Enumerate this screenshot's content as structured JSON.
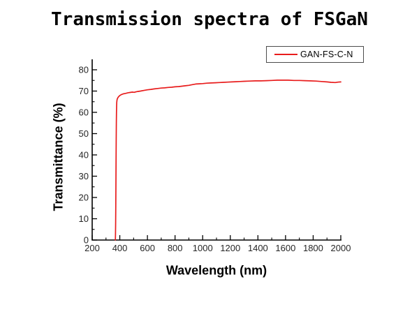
{
  "page": {
    "background": "#ffffff"
  },
  "chart": {
    "title": "Transmission spectra of FSGaN",
    "xlabel": "Wavelength (nm)",
    "ylabel": "Transmittance (%)",
    "legend": {
      "label": "GAN-FS-C-N"
    },
    "colors": {
      "series": "#e81c1c",
      "axis": "#000000",
      "tick_label": "#262626",
      "legend_border": "#4c4c4c",
      "title": "#000000"
    }
  },
  "chart_data": {
    "type": "line",
    "title": "Transmission spectra of FSGaN",
    "xlabel": "Wavelength (nm)",
    "ylabel": "Transmittance (%)",
    "xlim": [
      200,
      2000
    ],
    "ylim": [
      0,
      85
    ],
    "x_ticks": [
      200,
      400,
      600,
      800,
      1000,
      1200,
      1400,
      1600,
      1800,
      2000
    ],
    "y_ticks": [
      0,
      10,
      20,
      30,
      40,
      50,
      60,
      70,
      80
    ],
    "x_minor_step": 100,
    "y_minor_step": 5,
    "grid": false,
    "legend_position": "top-right",
    "series": [
      {
        "name": "GAN-FS-C-N",
        "color": "#e81c1c",
        "points": [
          [
            368,
            0
          ],
          [
            369,
            3
          ],
          [
            370,
            8
          ],
          [
            371,
            16
          ],
          [
            372,
            26
          ],
          [
            373,
            37
          ],
          [
            374,
            47
          ],
          [
            375,
            55
          ],
          [
            376,
            60
          ],
          [
            377,
            63
          ],
          [
            378,
            64.8
          ],
          [
            380,
            65.9
          ],
          [
            383,
            66.5
          ],
          [
            387,
            67.0
          ],
          [
            392,
            67.4
          ],
          [
            400,
            67.9
          ],
          [
            410,
            68.3
          ],
          [
            425,
            68.7
          ],
          [
            440,
            68.9
          ],
          [
            455,
            69.1
          ],
          [
            470,
            69.3
          ],
          [
            490,
            69.5
          ],
          [
            505,
            69.4
          ],
          [
            515,
            69.6
          ],
          [
            530,
            69.8
          ],
          [
            550,
            70.0
          ],
          [
            575,
            70.3
          ],
          [
            600,
            70.6
          ],
          [
            625,
            70.8
          ],
          [
            650,
            71.0
          ],
          [
            675,
            71.2
          ],
          [
            700,
            71.4
          ],
          [
            725,
            71.5
          ],
          [
            750,
            71.7
          ],
          [
            775,
            71.8
          ],
          [
            800,
            72.0
          ],
          [
            825,
            72.1
          ],
          [
            850,
            72.3
          ],
          [
            875,
            72.5
          ],
          [
            900,
            72.7
          ],
          [
            925,
            73.0
          ],
          [
            950,
            73.3
          ],
          [
            975,
            73.4
          ],
          [
            1000,
            73.5
          ],
          [
            1030,
            73.7
          ],
          [
            1060,
            73.8
          ],
          [
            1090,
            73.9
          ],
          [
            1120,
            74.0
          ],
          [
            1150,
            74.1
          ],
          [
            1180,
            74.2
          ],
          [
            1210,
            74.3
          ],
          [
            1240,
            74.4
          ],
          [
            1270,
            74.5
          ],
          [
            1300,
            74.6
          ],
          [
            1340,
            74.7
          ],
          [
            1380,
            74.8
          ],
          [
            1420,
            74.8
          ],
          [
            1460,
            74.9
          ],
          [
            1500,
            75.0
          ],
          [
            1540,
            75.1
          ],
          [
            1580,
            75.1
          ],
          [
            1620,
            75.1
          ],
          [
            1660,
            75.0
          ],
          [
            1700,
            75.0
          ],
          [
            1740,
            74.9
          ],
          [
            1780,
            74.8
          ],
          [
            1820,
            74.7
          ],
          [
            1860,
            74.5
          ],
          [
            1900,
            74.3
          ],
          [
            1930,
            74.1
          ],
          [
            1960,
            74.0
          ],
          [
            1980,
            74.2
          ],
          [
            2000,
            74.3
          ]
        ]
      }
    ]
  }
}
